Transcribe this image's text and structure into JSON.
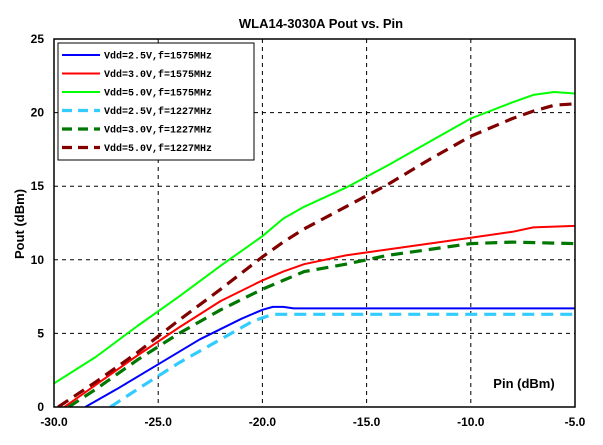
{
  "chart_data": {
    "type": "line",
    "title": "WLA14-3030A Pout vs. Pin",
    "xlabel": "Pin (dBm)",
    "ylabel": "Pout (dBm)",
    "xlim": [
      -30,
      -5
    ],
    "ylim": [
      0,
      25
    ],
    "x_ticks": [
      "-30.0",
      "-25.0",
      "-20.0",
      "-15.0",
      "-10.0",
      "-5.0"
    ],
    "y_ticks": [
      "0",
      "5",
      "10",
      "15",
      "20",
      "25"
    ],
    "grid": true,
    "legend_position": "top-left",
    "series": [
      {
        "name": "Vdd=2.5V,f=1575MHz",
        "color": "#0000ff",
        "dash": "solid",
        "points": [
          [
            -28.5,
            0
          ],
          [
            -27,
            1.2
          ],
          [
            -25,
            2.9
          ],
          [
            -23,
            4.6
          ],
          [
            -21,
            6.0
          ],
          [
            -20,
            6.6
          ],
          [
            -19.5,
            6.8
          ],
          [
            -19,
            6.8
          ],
          [
            -18.5,
            6.7
          ],
          [
            -15,
            6.7
          ],
          [
            -10,
            6.7
          ],
          [
            -5,
            6.7
          ]
        ]
      },
      {
        "name": "Vdd=3.0V,f=1575MHz",
        "color": "#ff0000",
        "dash": "solid",
        "points": [
          [
            -29.5,
            0
          ],
          [
            -28,
            1.5
          ],
          [
            -26,
            3.5
          ],
          [
            -24,
            5.4
          ],
          [
            -22,
            7.2
          ],
          [
            -20,
            8.6
          ],
          [
            -19,
            9.2
          ],
          [
            -18,
            9.7
          ],
          [
            -16,
            10.3
          ],
          [
            -14,
            10.7
          ],
          [
            -12,
            11.1
          ],
          [
            -10,
            11.5
          ],
          [
            -8,
            11.9
          ],
          [
            -7,
            12.2
          ],
          [
            -5,
            12.3
          ]
        ]
      },
      {
        "name": "Vdd=5.0V,f=1575MHz",
        "color": "#00ff00",
        "dash": "solid",
        "points": [
          [
            -30,
            1.6
          ],
          [
            -28,
            3.4
          ],
          [
            -26,
            5.5
          ],
          [
            -24,
            7.5
          ],
          [
            -22,
            9.6
          ],
          [
            -20,
            11.6
          ],
          [
            -19,
            12.8
          ],
          [
            -18,
            13.6
          ],
          [
            -16,
            14.9
          ],
          [
            -14,
            16.4
          ],
          [
            -12,
            18.0
          ],
          [
            -10,
            19.6
          ],
          [
            -8,
            20.7
          ],
          [
            -7,
            21.2
          ],
          [
            -6,
            21.4
          ],
          [
            -5,
            21.3
          ]
        ]
      },
      {
        "name": "Vdd=2.5V,f=1227MHz",
        "color": "#33ccff",
        "dash": "dashed",
        "points": [
          [
            -27.3,
            0
          ],
          [
            -26,
            1.2
          ],
          [
            -24,
            3.0
          ],
          [
            -22,
            4.6
          ],
          [
            -20.5,
            5.8
          ],
          [
            -19.5,
            6.3
          ],
          [
            -18,
            6.3
          ],
          [
            -15,
            6.3
          ],
          [
            -10,
            6.3
          ],
          [
            -5,
            6.3
          ]
        ]
      },
      {
        "name": "Vdd=3.0V,f=1227MHz",
        "color": "#007700",
        "dash": "dashed",
        "points": [
          [
            -29.3,
            0
          ],
          [
            -28,
            1.2
          ],
          [
            -26,
            3.2
          ],
          [
            -24,
            5.0
          ],
          [
            -22,
            6.6
          ],
          [
            -20,
            8.0
          ],
          [
            -19,
            8.6
          ],
          [
            -18,
            9.2
          ],
          [
            -16,
            9.7
          ],
          [
            -14,
            10.3
          ],
          [
            -12,
            10.7
          ],
          [
            -10,
            11.1
          ],
          [
            -8,
            11.2
          ],
          [
            -5,
            11.1
          ]
        ]
      },
      {
        "name": "Vdd=5.0V,f=1227MHz",
        "color": "#800000",
        "dash": "dashed",
        "points": [
          [
            -29.8,
            0
          ],
          [
            -28,
            1.7
          ],
          [
            -26,
            3.7
          ],
          [
            -24,
            5.9
          ],
          [
            -22,
            8.0
          ],
          [
            -20,
            10.2
          ],
          [
            -19,
            11.2
          ],
          [
            -18,
            12.1
          ],
          [
            -16,
            13.6
          ],
          [
            -14,
            15.1
          ],
          [
            -12,
            16.8
          ],
          [
            -10,
            18.4
          ],
          [
            -8,
            19.6
          ],
          [
            -7,
            20.1
          ],
          [
            -6,
            20.5
          ],
          [
            -5,
            20.6
          ]
        ]
      }
    ]
  }
}
